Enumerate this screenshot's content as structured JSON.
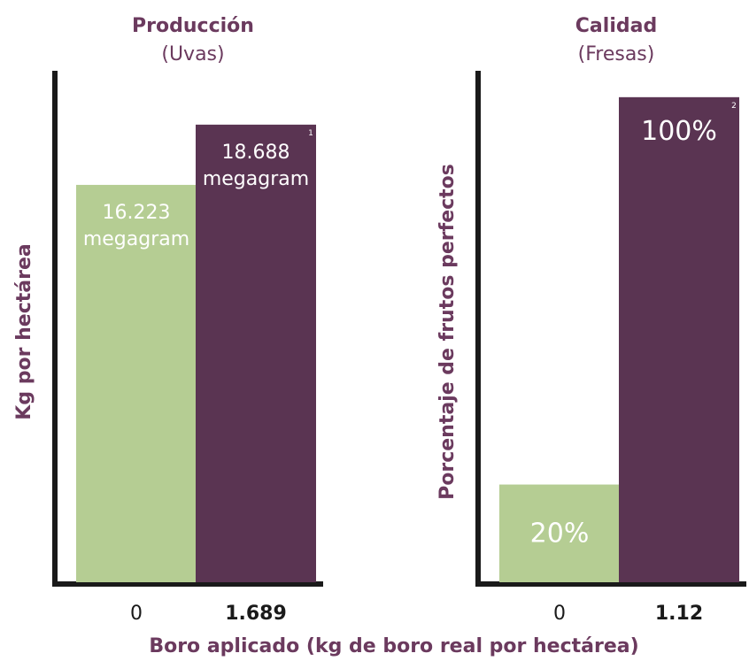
{
  "colors": {
    "control": "#b5cd93",
    "treated": "#5a3452",
    "axis": "#1a1a1a",
    "text": "#6b3a5e"
  },
  "shared_xlabel": "Boro aplicado (kg de boro real por hectárea)",
  "chart_data": [
    {
      "type": "bar",
      "title": "Producción",
      "subtitle": "(Uvas)",
      "xlabel": "",
      "ylabel": "Kg por hectárea",
      "categories": [
        "0",
        "1.689"
      ],
      "values": [
        16223,
        18688
      ],
      "value_labels": [
        [
          "16.223",
          "megagram"
        ],
        [
          "18.688",
          "megagram"
        ]
      ],
      "footnotes": [
        "",
        "1"
      ],
      "ylim": [
        0,
        21000
      ],
      "bold_categories": [
        false,
        true
      ]
    },
    {
      "type": "bar",
      "title": "Calidad",
      "subtitle": "(Fresas)",
      "xlabel": "",
      "ylabel": "Porcentaje de frutos perfectos",
      "categories": [
        "0",
        "1.12"
      ],
      "values": [
        20,
        100
      ],
      "value_labels": [
        [
          "20%"
        ],
        [
          "100%"
        ]
      ],
      "footnotes": [
        "",
        "2"
      ],
      "ylim": [
        0,
        106
      ],
      "bold_categories": [
        false,
        true
      ]
    }
  ]
}
